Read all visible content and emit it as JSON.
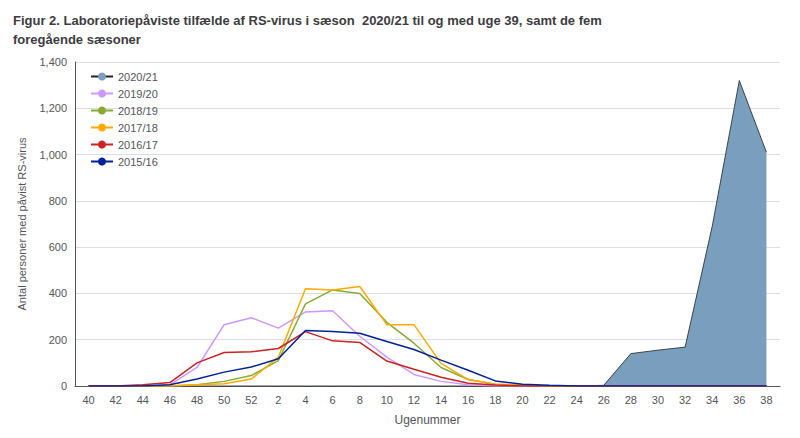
{
  "chart_data": {
    "type": "line",
    "title": "Figur 2. Laboratoriepåviste tilfælde af RS-virus i sæson  2020/21 til og med uge 39, samt de fem\nforegående sæsoner",
    "x_label": "Ugenummer",
    "y_label": "Antal personer med påvist RS-virus",
    "categories": [
      "40",
      "42",
      "44",
      "46",
      "48",
      "50",
      "52",
      "2",
      "4",
      "6",
      "8",
      "10",
      "12",
      "14",
      "16",
      "18",
      "20",
      "22",
      "24",
      "26",
      "28",
      "30",
      "32",
      "34",
      "36",
      "38"
    ],
    "series": [
      {
        "name": "2020/21",
        "type": "area",
        "color": "#7a9fbe",
        "values": [
          0,
          0,
          0,
          0,
          0,
          0,
          0,
          0,
          0,
          0,
          0,
          0,
          0,
          0,
          0,
          0,
          0,
          0,
          0,
          3,
          140,
          155,
          168,
          690,
          1320,
          1010
        ]
      },
      {
        "name": "2019/20",
        "type": "line",
        "color": "#cc99ff",
        "values": [
          0,
          0,
          0,
          5,
          80,
          265,
          295,
          250,
          320,
          325,
          215,
          125,
          50,
          20,
          5,
          0,
          0,
          0,
          0,
          0,
          0,
          0,
          0,
          0,
          0,
          0
        ]
      },
      {
        "name": "2018/19",
        "type": "line",
        "color": "#88aa33",
        "values": [
          0,
          0,
          0,
          0,
          5,
          20,
          45,
          110,
          355,
          415,
          400,
          275,
          185,
          80,
          28,
          8,
          3,
          0,
          0,
          0,
          0,
          0,
          0,
          0,
          0,
          0
        ]
      },
      {
        "name": "2017/18",
        "type": "line",
        "color": "#ffaa00",
        "values": [
          0,
          0,
          0,
          0,
          5,
          10,
          30,
          125,
          420,
          415,
          430,
          265,
          265,
          98,
          28,
          8,
          3,
          0,
          0,
          0,
          0,
          0,
          0,
          0,
          0,
          0
        ]
      },
      {
        "name": "2016/17",
        "type": "line",
        "color": "#cc2222",
        "values": [
          0,
          0,
          5,
          15,
          100,
          145,
          148,
          162,
          235,
          195,
          188,
          108,
          72,
          38,
          12,
          4,
          0,
          0,
          0,
          0,
          0,
          0,
          0,
          0,
          0,
          0
        ]
      },
      {
        "name": "2015/16",
        "type": "line",
        "color": "#002299",
        "values": [
          0,
          0,
          0,
          5,
          30,
          60,
          82,
          118,
          240,
          235,
          228,
          192,
          158,
          112,
          68,
          22,
          8,
          3,
          0,
          0,
          0,
          0,
          0,
          0,
          0,
          0
        ]
      }
    ],
    "ylim": [
      0,
      1400
    ],
    "yticks": [
      0,
      200,
      400,
      600,
      800,
      1000,
      1200,
      1400
    ],
    "grid": true,
    "legend": "upper left"
  }
}
